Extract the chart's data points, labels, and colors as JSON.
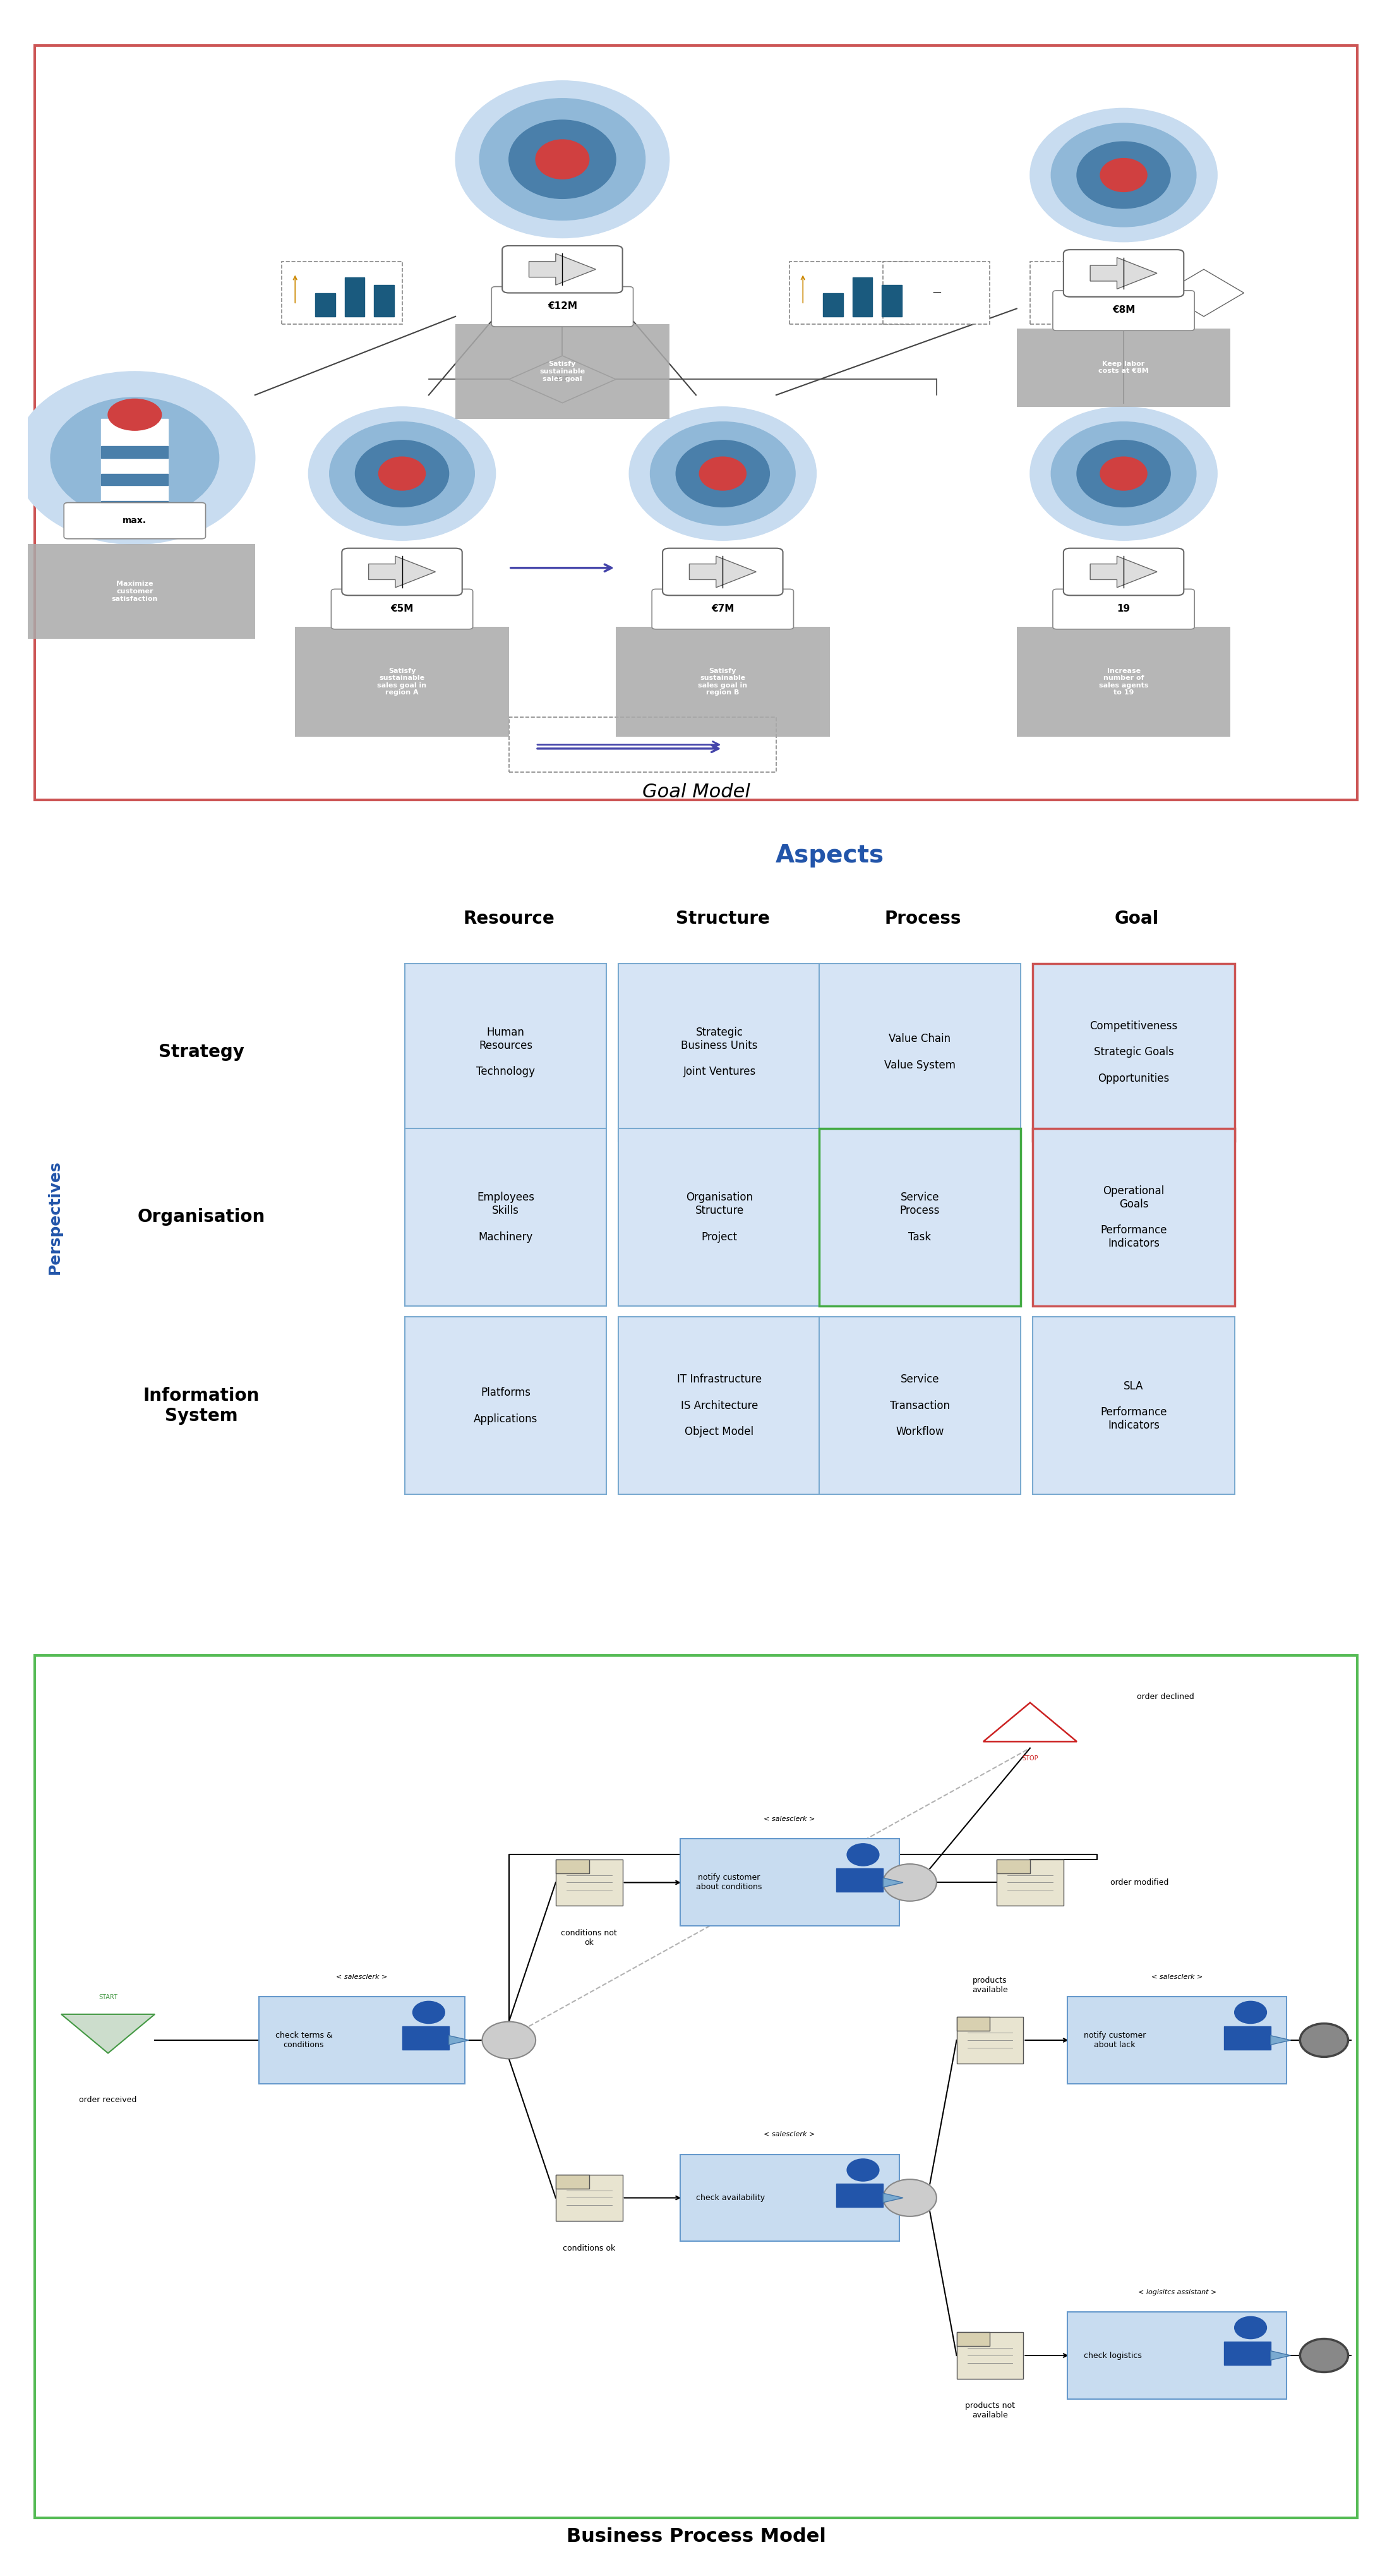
{
  "title_goal_model": "Goal Model",
  "title_aspects": "Aspects",
  "title_bpm": "Business Process Model",
  "aspects_color": "#2255AA",
  "perspectives_color": "#2255AA",
  "section1_border": "#CC5555",
  "section3_border": "#55BB55",
  "cell_bg": "#D6E4F5",
  "cell_border_blue": "#7AAAD0",
  "cell_border_red": "#CC5555",
  "cell_border_green": "#44AA44",
  "col_headers": [
    "Resource",
    "Structure",
    "Process",
    "Goal"
  ],
  "row_headers": [
    "Strategy",
    "Organisation",
    "Information\nSystem"
  ],
  "matrix_cells": [
    [
      "Human\nResources\n\nTechnology",
      "Strategic\nBusiness Units\n\nJoint Ventures",
      "Value Chain\n\nValue System",
      "Competitiveness\n\nStrategic Goals\n\nOpportunities"
    ],
    [
      "Employees\nSkills\n\nMachinery",
      "Organisation\nStructure\n\nProject",
      "Service\nProcess\n\nTask",
      "Operational\nGoals\n\nPerformance\nIndicators"
    ],
    [
      "Platforms\n\nApplications",
      "IT Infrastructure\n\nIS Architecture\n\nObject Model",
      "Service\n\nTransaction\n\nWorkflow",
      "SLA\n\nPerformance\nIndicators"
    ]
  ],
  "cell_borders": [
    [
      "blue",
      "blue",
      "blue",
      "red"
    ],
    [
      "blue",
      "blue",
      "green",
      "red"
    ],
    [
      "blue",
      "blue",
      "blue",
      "blue"
    ]
  ],
  "target_outer_color": "#C8DCF0",
  "target_mid1_color": "#90B8D8",
  "target_mid2_color": "#4A7FAA",
  "target_inner_color": "#D04040",
  "gray_box_color": "#AAAAAA",
  "bpm_task_bg": "#C8DCF0",
  "bpm_task_border": "#6699CC"
}
